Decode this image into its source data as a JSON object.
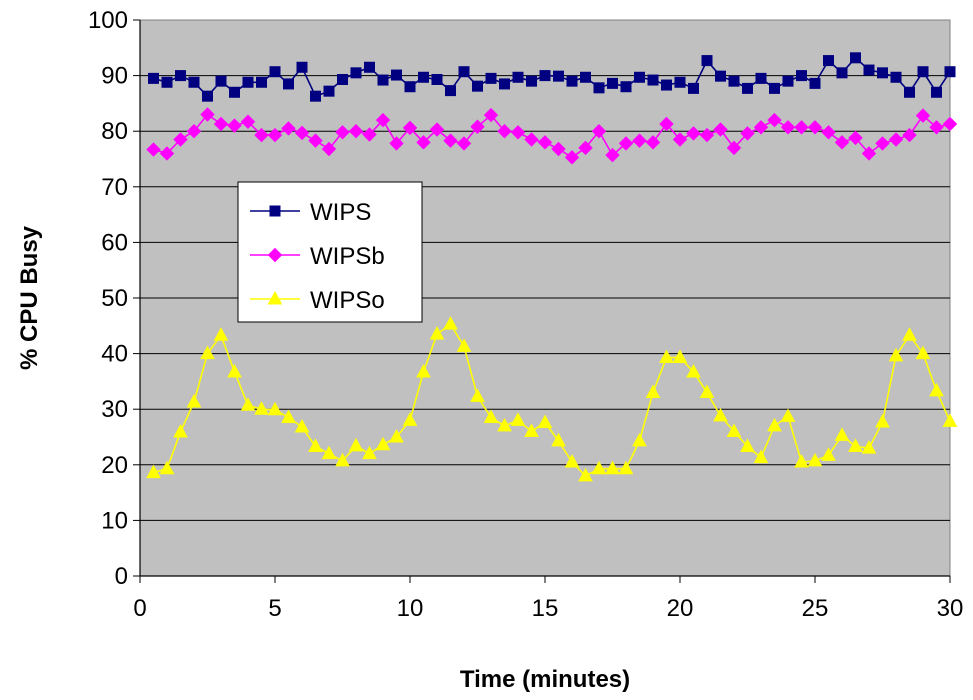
{
  "chart_data": {
    "type": "line",
    "title": "",
    "xlabel": "Time (minutes)",
    "ylabel": "% CPU Busy",
    "xlim": [
      0,
      30
    ],
    "ylim": [
      0,
      100
    ],
    "x_ticks": [
      "0",
      "5",
      "10",
      "15",
      "20",
      "25",
      "30"
    ],
    "y_ticks": [
      "0",
      "10",
      "20",
      "30",
      "40",
      "50",
      "60",
      "70",
      "80",
      "90",
      "100"
    ],
    "grid": "horizontal",
    "plot_background": "#c0c0c0",
    "legend_position": "upper-left inside plot",
    "x": [
      0.5,
      1,
      1.5,
      2,
      2.5,
      3,
      3.5,
      4,
      4.5,
      5,
      5.5,
      6,
      6.5,
      7,
      7.5,
      8,
      8.5,
      9,
      9.5,
      10,
      10.5,
      11,
      11.5,
      12,
      12.5,
      13,
      13.5,
      14,
      14.5,
      15,
      15.5,
      16,
      16.5,
      17,
      17.5,
      18,
      18.5,
      19,
      19.5,
      20,
      20.5,
      21,
      21.5,
      22,
      22.5,
      23,
      23.5,
      24,
      24.5,
      25,
      25.5,
      26,
      26.5,
      27,
      27.5,
      28,
      28.5,
      29,
      29.5,
      30
    ],
    "series": [
      {
        "name": "WIPS",
        "color": "#000080",
        "marker": "square",
        "values": [
          89.5,
          88.8,
          90.0,
          88.8,
          86.3,
          89.0,
          87.0,
          88.8,
          88.8,
          90.7,
          88.5,
          91.5,
          86.3,
          87.2,
          89.3,
          90.5,
          91.5,
          89.2,
          90.1,
          88.0,
          89.7,
          89.3,
          87.3,
          90.7,
          88.1,
          89.5,
          88.5,
          89.7,
          89.0,
          90.0,
          89.9,
          89.0,
          89.7,
          87.8,
          88.6,
          88.0,
          89.7,
          89.2,
          88.3,
          88.8,
          87.7,
          92.7,
          89.9,
          89.0,
          87.7,
          89.5,
          87.7,
          89.0,
          90.0,
          88.6,
          92.7,
          90.5,
          93.2,
          91.0,
          90.5,
          89.7,
          87.0,
          90.7,
          87.0,
          90.7
        ]
      },
      {
        "name": "WIPSb",
        "color": "#ff00ff",
        "marker": "diamond",
        "values": [
          76.7,
          76.0,
          78.5,
          80.0,
          83.0,
          81.3,
          81.0,
          81.7,
          79.3,
          79.3,
          80.5,
          79.7,
          78.3,
          76.8,
          79.8,
          80.0,
          79.4,
          82.0,
          77.8,
          80.6,
          78.0,
          80.3,
          78.3,
          77.8,
          80.8,
          82.9,
          80.0,
          79.8,
          78.5,
          78.0,
          76.8,
          75.3,
          77.0,
          80.0,
          75.7,
          77.8,
          78.3,
          78.0,
          81.3,
          78.5,
          79.6,
          79.3,
          80.3,
          77.0,
          79.6,
          80.7,
          82.0,
          80.7,
          80.7,
          80.7,
          79.8,
          78.0,
          78.8,
          76.0,
          77.8,
          78.5,
          79.3,
          82.8,
          80.7,
          81.3
        ]
      },
      {
        "name": "WIPSo",
        "color": "#ffff00",
        "marker": "triangle",
        "values": [
          18.6,
          19.3,
          25.9,
          31.3,
          40.0,
          43.3,
          36.7,
          30.7,
          30.0,
          29.9,
          28.5,
          26.8,
          23.3,
          22.0,
          20.7,
          23.4,
          22.0,
          23.6,
          25.0,
          28.0,
          36.7,
          43.5,
          45.3,
          41.3,
          32.3,
          28.5,
          27.0,
          28.0,
          26.0,
          27.6,
          24.3,
          20.5,
          18.0,
          19.3,
          19.3,
          19.3,
          24.3,
          33.0,
          39.3,
          39.3,
          36.7,
          33.0,
          28.8,
          26.0,
          23.3,
          21.3,
          27.0,
          28.7,
          20.5,
          20.7,
          21.7,
          25.3,
          23.3,
          23.0,
          27.7,
          39.6,
          43.3,
          40.0,
          33.3,
          27.8
        ]
      }
    ]
  }
}
